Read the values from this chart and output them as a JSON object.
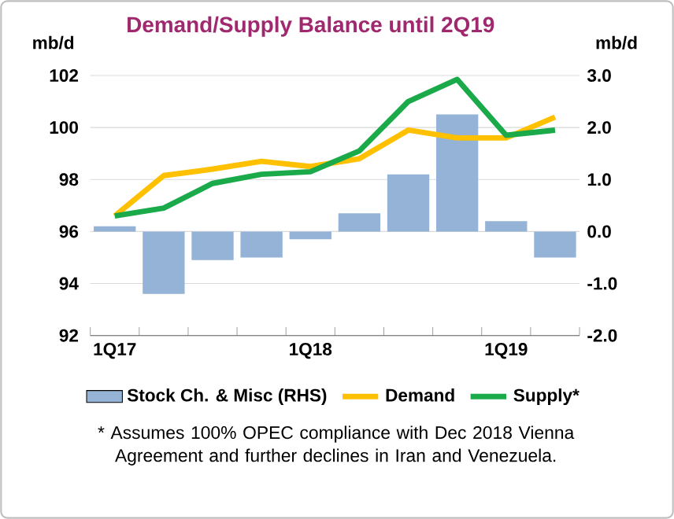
{
  "chart_data": {
    "type": "line",
    "title": "Demand/Supply Balance until 2Q19",
    "ylabel": "mb/d",
    "y2label": "mb/d",
    "categories": [
      "1Q17",
      null,
      null,
      null,
      "1Q18",
      null,
      null,
      null,
      "1Q19",
      null
    ],
    "series": [
      {
        "name": "Stock Ch. & Misc (RHS)",
        "type": "bar",
        "axis": "y2",
        "color": "#95b3d7",
        "values": [
          0.1,
          -1.2,
          -0.55,
          -0.5,
          -0.15,
          0.35,
          1.1,
          2.25,
          0.2,
          -0.5
        ]
      },
      {
        "name": "Demand",
        "color": "#ffc000",
        "values": [
          96.6,
          98.15,
          98.4,
          98.7,
          98.5,
          98.8,
          99.9,
          99.6,
          99.6,
          100.4
        ]
      },
      {
        "name": "Supply*",
        "color": "#1aaa4a",
        "values": [
          96.6,
          96.9,
          97.85,
          98.2,
          98.3,
          99.1,
          101.0,
          101.85,
          99.7,
          99.9
        ]
      }
    ],
    "ylim": [
      92,
      102
    ],
    "yticks": [
      92,
      94,
      96,
      98,
      100,
      102
    ],
    "y2lim": [
      -2,
      3
    ],
    "y2ticks": [
      {
        "value": -2,
        "label": "-2.0"
      },
      {
        "value": -1,
        "label": "-1.0"
      },
      {
        "value": 0,
        "label": "0.0"
      },
      {
        "value": 1,
        "label": "1.0"
      },
      {
        "value": 2,
        "label": "2.0"
      },
      {
        "value": 3,
        "label": "3.0"
      }
    ],
    "grid": "y",
    "legend": "bottom",
    "marker": "none",
    "line_style": "solid",
    "annotations": [
      "* Assumes 100% OPEC compliance with Dec 2018 Vienna Agreement and further declines in Iran and Venezuela."
    ]
  }
}
